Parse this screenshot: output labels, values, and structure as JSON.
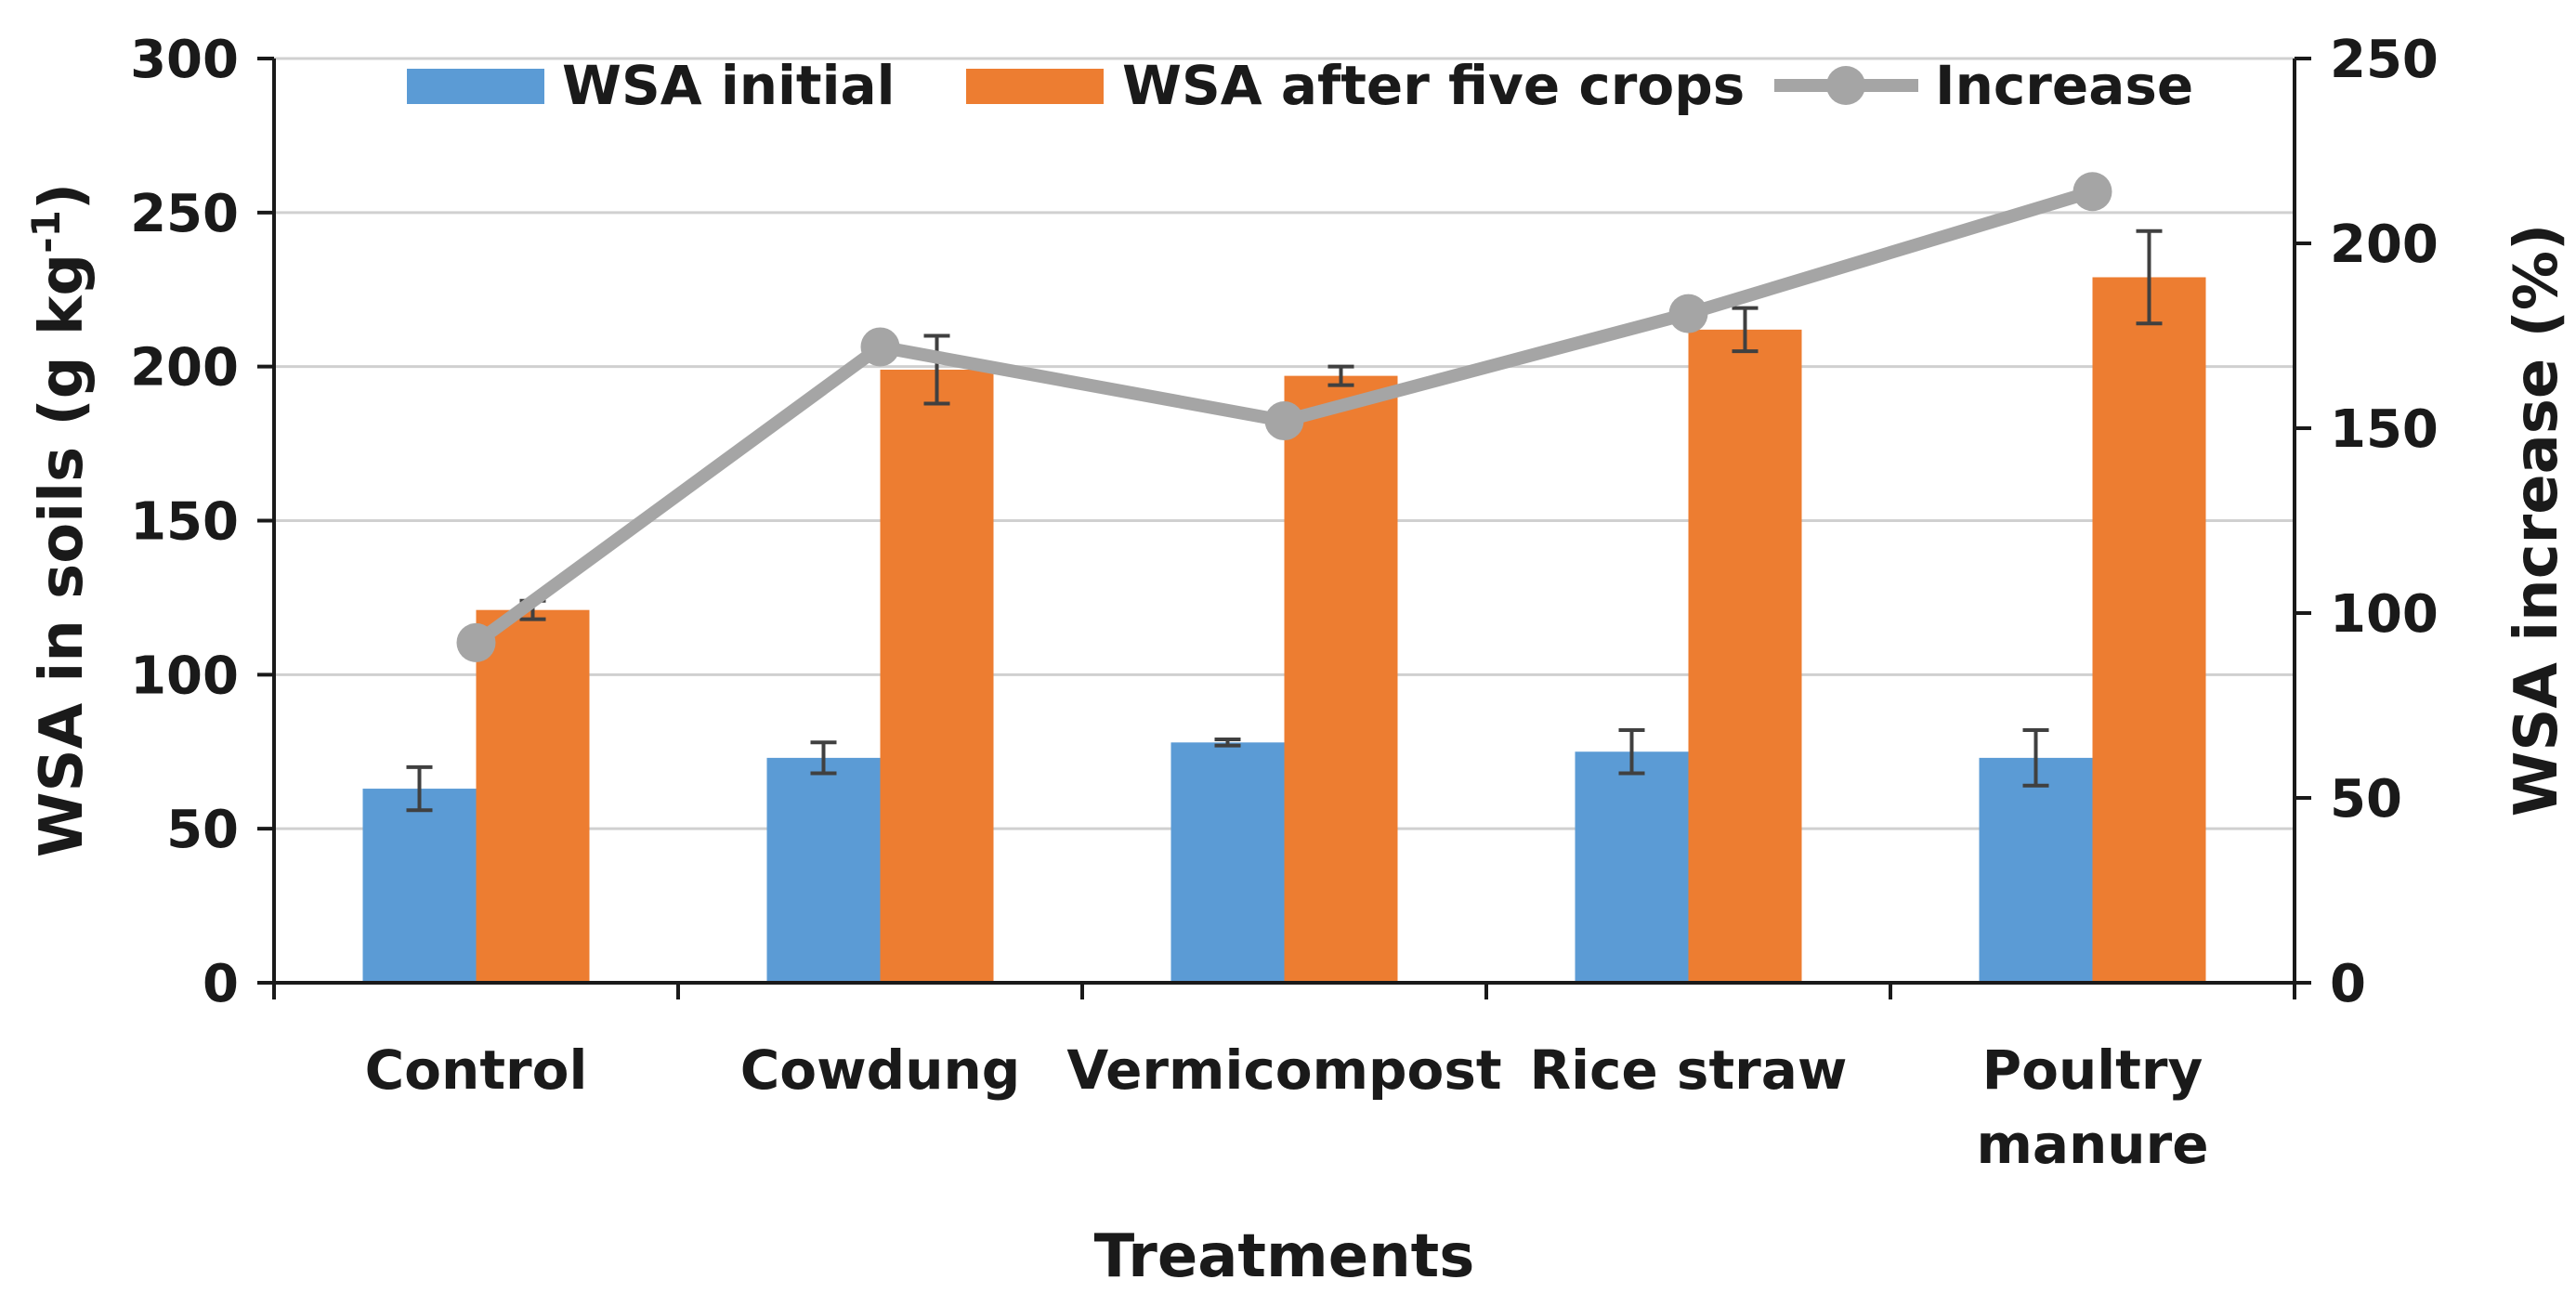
{
  "chart_data": {
    "type": "bar",
    "categories": [
      [
        "Control"
      ],
      [
        "Cowdung"
      ],
      [
        "Vermicompost"
      ],
      [
        "Rice straw"
      ],
      [
        "Poultry",
        "manure"
      ]
    ],
    "series": [
      {
        "name": "WSA initial",
        "axis": "left",
        "kind": "bar",
        "color": "#5B9BD5",
        "values": [
          63,
          73,
          78,
          75,
          73
        ],
        "errors": [
          7,
          5,
          1,
          7,
          9
        ]
      },
      {
        "name": "WSA after five crops",
        "axis": "left",
        "kind": "bar",
        "color": "#ED7D31",
        "values": [
          121,
          199,
          197,
          212,
          229
        ],
        "errors": [
          3,
          11,
          3,
          7,
          15
        ]
      },
      {
        "name": "Increase",
        "axis": "right",
        "kind": "line",
        "color": "#A5A5A5",
        "values": [
          92,
          172,
          152,
          181,
          214
        ]
      }
    ],
    "xlabel": "Treatments",
    "ylabel": {
      "main": "WSA in soils (g kg",
      "sup": "-1",
      "tail": ")"
    },
    "y2label": "WSA increase (%)",
    "ylim": [
      0,
      300
    ],
    "yticks": [
      "0",
      "50",
      "100",
      "150",
      "200",
      "250",
      "300"
    ],
    "y2lim": [
      0,
      250
    ],
    "y2ticks": [
      "0",
      "50",
      "100",
      "150",
      "200",
      "250"
    ],
    "grid": true,
    "legend": "top"
  }
}
